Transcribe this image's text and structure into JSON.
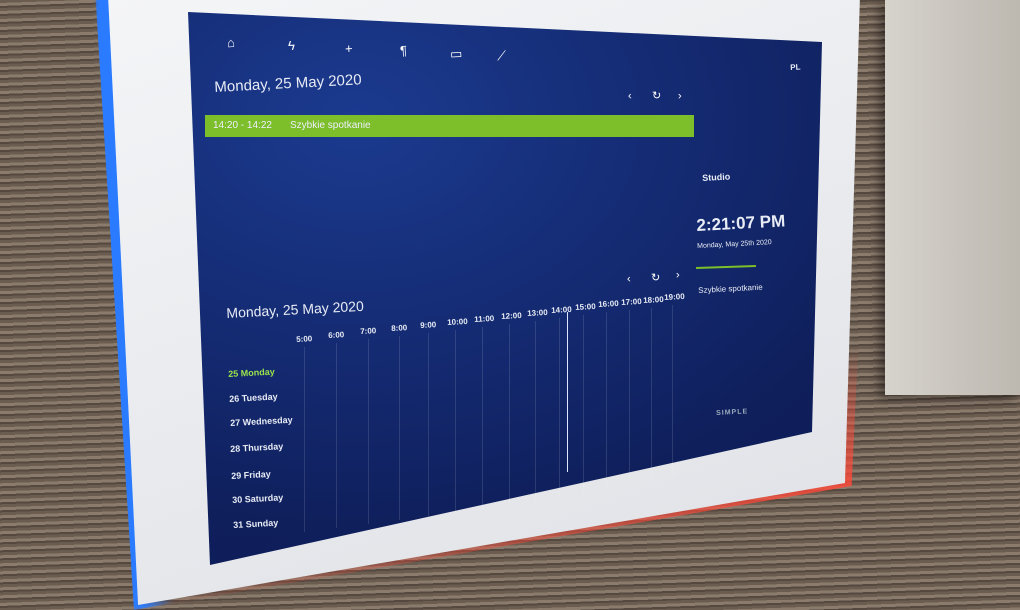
{
  "nav": {
    "icons": [
      "home-icon",
      "bolt-icon",
      "plus-icon",
      "restaurant-icon",
      "monitor-icon",
      "brush-icon"
    ],
    "language": "PL"
  },
  "agenda": {
    "date": "Monday, 25 May 2020",
    "prev": "‹",
    "refresh": "↻",
    "next": "›",
    "event": {
      "time": "14:20 - 14:22",
      "title": "Szybkie spotkanie",
      "color": "#7cbf2a"
    }
  },
  "side": {
    "room": "Studio",
    "clock": "2:21:07 PM",
    "date": "Monday, May 25th 2020",
    "current_event": "Szybkie spotkanie",
    "logo": "SIMPLE"
  },
  "week": {
    "date": "Monday, 25 May 2020",
    "hours": [
      "5:00",
      "6:00",
      "7:00",
      "8:00",
      "9:00",
      "10:00",
      "11:00",
      "12:00",
      "13:00",
      "14:00",
      "15:00",
      "16:00",
      "17:00",
      "18:00",
      "19:00"
    ],
    "days": [
      "25 Monday",
      "26 Tuesday",
      "27 Wednesday",
      "28 Thursday",
      "29 Friday",
      "30 Saturday",
      "31 Sunday"
    ],
    "today_color": "#9be34a"
  }
}
